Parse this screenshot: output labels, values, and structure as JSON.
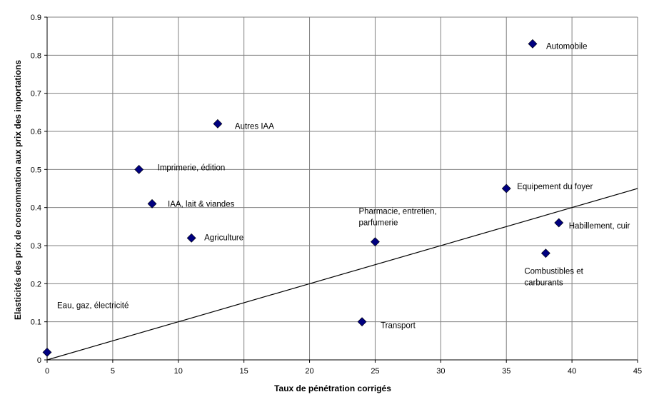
{
  "chart_data": {
    "type": "scatter",
    "xlabel": "Taux de pénétration corrigés",
    "ylabel": "Elasticités des prix de consommation aux prix des importations",
    "xlim": [
      0,
      45
    ],
    "ylim": [
      0,
      0.9
    ],
    "xticks": [
      "0",
      "5",
      "10",
      "15",
      "20",
      "25",
      "30",
      "35",
      "40",
      "45"
    ],
    "yticks": [
      "0",
      "0.1",
      "0.2",
      "0.3",
      "0.4",
      "0.5",
      "0.6",
      "0.7",
      "0.8",
      "0.9"
    ],
    "grid": true,
    "marker_color": "#000080",
    "points": [
      {
        "label": [
          "Eau, gaz, électricité"
        ],
        "x": 0,
        "y": 0.02
      },
      {
        "label": [
          "Imprimerie, édition"
        ],
        "x": 7,
        "y": 0.5
      },
      {
        "label": [
          "IAA, lait & viandes"
        ],
        "x": 8,
        "y": 0.41
      },
      {
        "label": [
          "Agriculture"
        ],
        "x": 11,
        "y": 0.32
      },
      {
        "label": [
          "Autres IAA"
        ],
        "x": 13,
        "y": 0.62
      },
      {
        "label": [
          "Transport"
        ],
        "x": 24,
        "y": 0.1
      },
      {
        "label": [
          "Pharmacie, entretien,",
          "parfumerie"
        ],
        "x": 25,
        "y": 0.31
      },
      {
        "label": [
          "Equipement du foyer"
        ],
        "x": 35,
        "y": 0.45
      },
      {
        "label": [
          "Automobile"
        ],
        "x": 37,
        "y": 0.83
      },
      {
        "label": [
          "Combustibles et",
          "carburants"
        ],
        "x": 38,
        "y": 0.28
      },
      {
        "label": [
          "Habillement, cuir"
        ],
        "x": 39,
        "y": 0.36
      }
    ],
    "trendline": {
      "x": [
        0,
        45
      ],
      "y": [
        0,
        0.45
      ]
    }
  }
}
